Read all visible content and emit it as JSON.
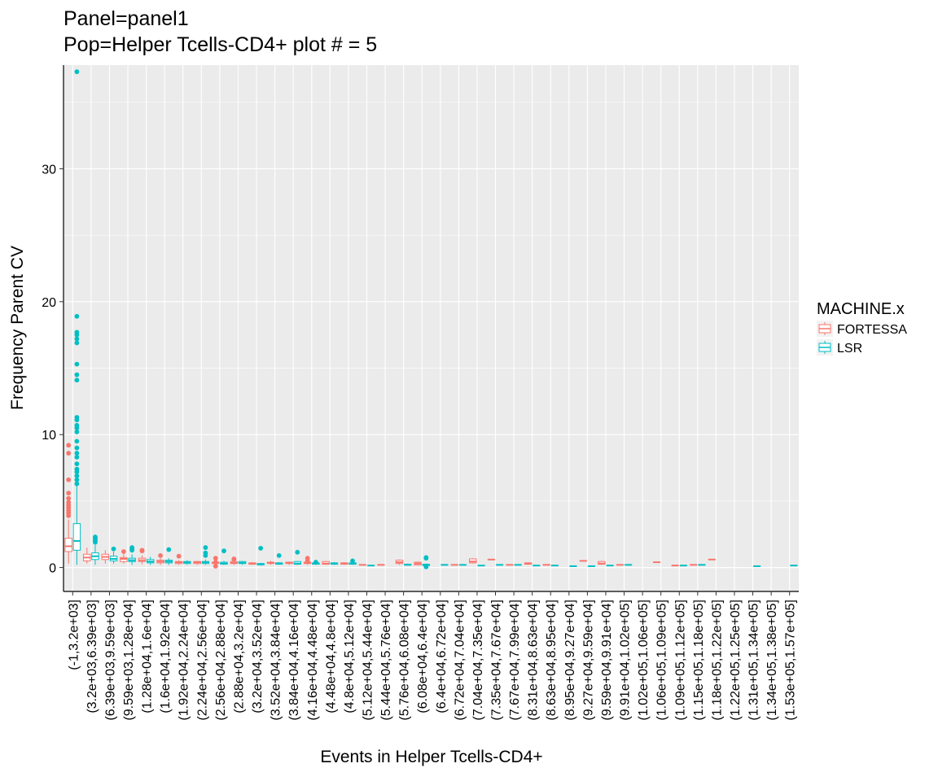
{
  "chart_data": {
    "type": "box",
    "title": "Panel=panel1",
    "subtitle": "Pop=Helper Tcells-CD4+ plot # = 5",
    "xlabel": "Events in Helper Tcells-CD4+",
    "ylabel": "Frequency Parent CV",
    "ylim": [
      -1.8,
      37.8
    ],
    "yticks": [
      0,
      10,
      20,
      30
    ],
    "grid": true,
    "legend": {
      "title": "MACHINE.x",
      "placement": "right",
      "entries": [
        {
          "name": "FORTESSA",
          "color": "#F8766D"
        },
        {
          "name": "LSR",
          "color": "#00BFC4"
        }
      ]
    },
    "categories": [
      "(-1,3.2e+03]",
      "(3.2e+03,6.39e+03]",
      "(6.39e+03,9.59e+03]",
      "(9.59e+03,1.28e+04]",
      "(1.28e+04,1.6e+04]",
      "(1.6e+04,1.92e+04]",
      "(1.92e+04,2.24e+04]",
      "(2.24e+04,2.56e+04]",
      "(2.56e+04,2.88e+04]",
      "(2.88e+04,3.2e+04]",
      "(3.2e+04,3.52e+04]",
      "(3.52e+04,3.84e+04]",
      "(3.84e+04,4.16e+04]",
      "(4.16e+04,4.48e+04]",
      "(4.48e+04,4.8e+04]",
      "(4.8e+04,5.12e+04]",
      "(5.12e+04,5.44e+04]",
      "(5.44e+04,5.76e+04]",
      "(5.76e+04,6.08e+04]",
      "(6.08e+04,6.4e+04]",
      "(6.4e+04,6.72e+04]",
      "(6.72e+04,7.04e+04]",
      "(7.04e+04,7.35e+04]",
      "(7.35e+04,7.67e+04]",
      "(7.67e+04,7.99e+04]",
      "(8.31e+04,8.63e+04]",
      "(8.63e+04,8.95e+04]",
      "(8.95e+04,9.27e+04]",
      "(9.27e+04,9.59e+04]",
      "(9.59e+04,9.91e+04]",
      "(9.91e+04,1.02e+05]",
      "(1.02e+05,1.06e+05]",
      "(1.06e+05,1.09e+05]",
      "(1.09e+05,1.12e+05]",
      "(1.15e+05,1.18e+05]",
      "(1.18e+05,1.22e+05]",
      "(1.22e+05,1.25e+05]",
      "(1.31e+05,1.34e+05]",
      "(1.34e+05,1.38e+05]",
      "(1.53e+05,1.57e+05]"
    ],
    "series": [
      {
        "name": "FORTESSA",
        "boxes": [
          {
            "cat": 0,
            "min": 0.3,
            "q1": 1.2,
            "median": 1.6,
            "q3": 2.2,
            "max": 3.6,
            "outliers": [
              9.2,
              8.6,
              6.6,
              5.6,
              5.2,
              4.9,
              4.7,
              4.5,
              4.3,
              4.1,
              3.9
            ]
          },
          {
            "cat": 1,
            "min": 0.3,
            "q1": 0.5,
            "median": 0.75,
            "q3": 1.0,
            "max": 1.5,
            "outliers": []
          },
          {
            "cat": 2,
            "min": 0.3,
            "q1": 0.6,
            "median": 0.8,
            "q3": 1.0,
            "max": 1.3,
            "outliers": []
          },
          {
            "cat": 3,
            "min": 0.3,
            "q1": 0.45,
            "median": 0.65,
            "q3": 0.75,
            "max": 1.0,
            "outliers": [
              1.2
            ]
          },
          {
            "cat": 4,
            "min": 0.25,
            "q1": 0.45,
            "median": 0.55,
            "q3": 0.7,
            "max": 0.9,
            "outliers": [
              1.3,
              1.25
            ]
          },
          {
            "cat": 5,
            "min": 0.2,
            "q1": 0.35,
            "median": 0.45,
            "q3": 0.55,
            "max": 0.7,
            "outliers": [
              0.9
            ]
          },
          {
            "cat": 6,
            "min": 0.2,
            "q1": 0.3,
            "median": 0.4,
            "q3": 0.45,
            "max": 0.55,
            "outliers": [
              0.85
            ]
          },
          {
            "cat": 7,
            "min": 0.2,
            "q1": 0.3,
            "median": 0.4,
            "q3": 0.45,
            "max": 0.5,
            "outliers": []
          },
          {
            "cat": 8,
            "min": 0.1,
            "q1": 0.3,
            "median": 0.35,
            "q3": 0.4,
            "max": 0.5,
            "outliers": [
              0.7,
              0.4,
              0.1
            ]
          },
          {
            "cat": 9,
            "min": 0.2,
            "q1": 0.3,
            "median": 0.35,
            "q3": 0.45,
            "max": 0.5,
            "outliers": [
              0.65,
              0.6
            ]
          },
          {
            "cat": 10,
            "min": 0.2,
            "q1": 0.25,
            "median": 0.3,
            "q3": 0.35,
            "max": 0.4,
            "outliers": []
          },
          {
            "cat": 11,
            "min": 0.2,
            "q1": 0.3,
            "median": 0.35,
            "q3": 0.4,
            "max": 0.5,
            "outliers": []
          },
          {
            "cat": 12,
            "min": 0.2,
            "q1": 0.3,
            "median": 0.35,
            "q3": 0.4,
            "max": 0.45,
            "outliers": []
          },
          {
            "cat": 13,
            "min": 0.2,
            "q1": 0.3,
            "median": 0.35,
            "q3": 0.4,
            "max": 0.45,
            "outliers": [
              0.7,
              0.5
            ]
          },
          {
            "cat": 14,
            "min": 0.2,
            "q1": 0.25,
            "median": 0.3,
            "q3": 0.45,
            "max": 0.5,
            "outliers": []
          },
          {
            "cat": 15,
            "min": 0.2,
            "q1": 0.25,
            "median": 0.3,
            "q3": 0.35,
            "max": 0.4,
            "outliers": []
          },
          {
            "cat": 16,
            "min": 0.2,
            "q1": 0.2,
            "median": 0.2,
            "q3": 0.2,
            "max": 0.2,
            "outliers": []
          },
          {
            "cat": 17,
            "min": 0.2,
            "q1": 0.2,
            "median": 0.2,
            "q3": 0.2,
            "max": 0.2,
            "outliers": []
          },
          {
            "cat": 18,
            "min": 0.2,
            "q1": 0.3,
            "median": 0.4,
            "q3": 0.55,
            "max": 0.6,
            "outliers": []
          },
          {
            "cat": 19,
            "min": 0.15,
            "q1": 0.2,
            "median": 0.3,
            "q3": 0.4,
            "max": 0.45,
            "outliers": []
          },
          {
            "cat": 21,
            "min": 0.2,
            "q1": 0.2,
            "median": 0.2,
            "q3": 0.2,
            "max": 0.2,
            "outliers": []
          },
          {
            "cat": 22,
            "min": 0.3,
            "q1": 0.35,
            "median": 0.45,
            "q3": 0.65,
            "max": 0.7,
            "outliers": []
          },
          {
            "cat": 23,
            "min": 0.6,
            "q1": 0.6,
            "median": 0.6,
            "q3": 0.6,
            "max": 0.6,
            "outliers": []
          },
          {
            "cat": 24,
            "min": 0.2,
            "q1": 0.2,
            "median": 0.2,
            "q3": 0.2,
            "max": 0.2,
            "outliers": []
          },
          {
            "cat": 25,
            "min": 0.2,
            "q1": 0.25,
            "median": 0.3,
            "q3": 0.35,
            "max": 0.4,
            "outliers": []
          },
          {
            "cat": 26,
            "min": 0.2,
            "q1": 0.2,
            "median": 0.2,
            "q3": 0.2,
            "max": 0.2,
            "outliers": []
          },
          {
            "cat": 28,
            "min": 0.5,
            "q1": 0.5,
            "median": 0.5,
            "q3": 0.5,
            "max": 0.5,
            "outliers": []
          },
          {
            "cat": 29,
            "min": 0.2,
            "q1": 0.25,
            "median": 0.3,
            "q3": 0.45,
            "max": 0.5,
            "outliers": []
          },
          {
            "cat": 30,
            "min": 0.2,
            "q1": 0.2,
            "median": 0.2,
            "q3": 0.2,
            "max": 0.2,
            "outliers": []
          },
          {
            "cat": 32,
            "min": 0.4,
            "q1": 0.4,
            "median": 0.4,
            "q3": 0.4,
            "max": 0.4,
            "outliers": []
          },
          {
            "cat": 33,
            "min": 0.15,
            "q1": 0.15,
            "median": 0.15,
            "q3": 0.15,
            "max": 0.15,
            "outliers": []
          },
          {
            "cat": 34,
            "min": 0.2,
            "q1": 0.2,
            "median": 0.2,
            "q3": 0.2,
            "max": 0.2,
            "outliers": []
          },
          {
            "cat": 35,
            "min": 0.6,
            "q1": 0.6,
            "median": 0.6,
            "q3": 0.6,
            "max": 0.6,
            "outliers": []
          }
        ]
      },
      {
        "name": "LSR",
        "boxes": [
          {
            "cat": 0,
            "min": 0.2,
            "q1": 1.3,
            "median": 2.0,
            "q3": 3.3,
            "max": 6.2,
            "outliers": [
              37.3,
              18.9,
              17.7,
              17.5,
              17.2,
              16.9,
              15.3,
              14.5,
              14.1,
              11.3,
              11.1,
              10.7,
              10.5,
              10.2,
              9.5,
              9.0,
              8.6,
              8.3,
              7.8,
              7.4,
              7.2,
              6.9,
              6.6,
              6.3
            ]
          },
          {
            "cat": 1,
            "min": 0.2,
            "q1": 0.6,
            "median": 0.85,
            "q3": 1.1,
            "max": 1.7,
            "outliers": [
              2.3,
              2.2,
              2.1,
              2.0,
              1.9
            ]
          },
          {
            "cat": 2,
            "min": 0.3,
            "q1": 0.5,
            "median": 0.65,
            "q3": 0.85,
            "max": 1.2,
            "outliers": [
              1.4
            ]
          },
          {
            "cat": 3,
            "min": 0.2,
            "q1": 0.45,
            "median": 0.55,
            "q3": 0.7,
            "max": 1.0,
            "outliers": [
              1.5,
              1.4,
              1.3
            ]
          },
          {
            "cat": 4,
            "min": 0.2,
            "q1": 0.35,
            "median": 0.45,
            "q3": 0.6,
            "max": 0.8,
            "outliers": []
          },
          {
            "cat": 5,
            "min": 0.2,
            "q1": 0.35,
            "median": 0.45,
            "q3": 0.55,
            "max": 0.7,
            "outliers": [
              1.35
            ]
          },
          {
            "cat": 6,
            "min": 0.2,
            "q1": 0.3,
            "median": 0.4,
            "q3": 0.45,
            "max": 0.55,
            "outliers": []
          },
          {
            "cat": 7,
            "min": 0.2,
            "q1": 0.3,
            "median": 0.4,
            "q3": 0.45,
            "max": 0.6,
            "outliers": [
              1.5,
              1.1,
              0.9
            ]
          },
          {
            "cat": 8,
            "min": 0.2,
            "q1": 0.25,
            "median": 0.3,
            "q3": 0.4,
            "max": 0.5,
            "outliers": [
              1.25
            ]
          },
          {
            "cat": 9,
            "min": 0.2,
            "q1": 0.3,
            "median": 0.35,
            "q3": 0.45,
            "max": 0.5,
            "outliers": []
          },
          {
            "cat": 10,
            "min": 0.15,
            "q1": 0.2,
            "median": 0.25,
            "q3": 0.3,
            "max": 0.35,
            "outliers": [
              1.45
            ]
          },
          {
            "cat": 11,
            "min": 0.2,
            "q1": 0.25,
            "median": 0.3,
            "q3": 0.35,
            "max": 0.4,
            "outliers": [
              0.9
            ]
          },
          {
            "cat": 12,
            "min": 0.2,
            "q1": 0.25,
            "median": 0.3,
            "q3": 0.45,
            "max": 0.5,
            "outliers": [
              1.15
            ]
          },
          {
            "cat": 13,
            "min": 0.2,
            "q1": 0.25,
            "median": 0.3,
            "q3": 0.35,
            "max": 0.4,
            "outliers": [
              0.4
            ]
          },
          {
            "cat": 14,
            "min": 0.2,
            "q1": 0.25,
            "median": 0.3,
            "q3": 0.35,
            "max": 0.4,
            "outliers": []
          },
          {
            "cat": 15,
            "min": 0.2,
            "q1": 0.25,
            "median": 0.3,
            "q3": 0.35,
            "max": 0.4,
            "outliers": [
              0.5
            ]
          },
          {
            "cat": 16,
            "min": 0.15,
            "q1": 0.15,
            "median": 0.15,
            "q3": 0.15,
            "max": 0.15,
            "outliers": []
          },
          {
            "cat": 18,
            "min": 0.15,
            "q1": 0.2,
            "median": 0.2,
            "q3": 0.25,
            "max": 0.3,
            "outliers": []
          },
          {
            "cat": 19,
            "min": 0.1,
            "q1": 0.15,
            "median": 0.2,
            "q3": 0.25,
            "max": 0.3,
            "outliers": [
              0.75,
              0.7,
              0.05
            ]
          },
          {
            "cat": 20,
            "min": 0.2,
            "q1": 0.2,
            "median": 0.2,
            "q3": 0.2,
            "max": 0.2,
            "outliers": []
          },
          {
            "cat": 21,
            "min": 0.2,
            "q1": 0.2,
            "median": 0.2,
            "q3": 0.2,
            "max": 0.2,
            "outliers": []
          },
          {
            "cat": 22,
            "min": 0.15,
            "q1": 0.15,
            "median": 0.15,
            "q3": 0.15,
            "max": 0.15,
            "outliers": []
          },
          {
            "cat": 23,
            "min": 0.2,
            "q1": 0.2,
            "median": 0.2,
            "q3": 0.2,
            "max": 0.2,
            "outliers": []
          },
          {
            "cat": 24,
            "min": 0.2,
            "q1": 0.2,
            "median": 0.2,
            "q3": 0.2,
            "max": 0.2,
            "outliers": []
          },
          {
            "cat": 25,
            "min": 0.15,
            "q1": 0.15,
            "median": 0.15,
            "q3": 0.15,
            "max": 0.15,
            "outliers": []
          },
          {
            "cat": 26,
            "min": 0.15,
            "q1": 0.15,
            "median": 0.15,
            "q3": 0.15,
            "max": 0.15,
            "outliers": []
          },
          {
            "cat": 27,
            "min": 0.1,
            "q1": 0.1,
            "median": 0.1,
            "q3": 0.1,
            "max": 0.1,
            "outliers": []
          },
          {
            "cat": 28,
            "min": 0.1,
            "q1": 0.1,
            "median": 0.1,
            "q3": 0.1,
            "max": 0.1,
            "outliers": []
          },
          {
            "cat": 29,
            "min": 0.15,
            "q1": 0.15,
            "median": 0.15,
            "q3": 0.15,
            "max": 0.15,
            "outliers": []
          },
          {
            "cat": 30,
            "min": 0.2,
            "q1": 0.2,
            "median": 0.2,
            "q3": 0.2,
            "max": 0.2,
            "outliers": []
          },
          {
            "cat": 33,
            "min": 0.15,
            "q1": 0.15,
            "median": 0.15,
            "q3": 0.15,
            "max": 0.15,
            "outliers": []
          },
          {
            "cat": 34,
            "min": 0.2,
            "q1": 0.2,
            "median": 0.2,
            "q3": 0.2,
            "max": 0.2,
            "outliers": []
          },
          {
            "cat": 37,
            "min": 0.1,
            "q1": 0.1,
            "median": 0.1,
            "q3": 0.1,
            "max": 0.1,
            "outliers": []
          },
          {
            "cat": 39,
            "min": 0.15,
            "q1": 0.15,
            "median": 0.15,
            "q3": 0.15,
            "max": 0.15,
            "outliers": []
          }
        ]
      }
    ]
  }
}
